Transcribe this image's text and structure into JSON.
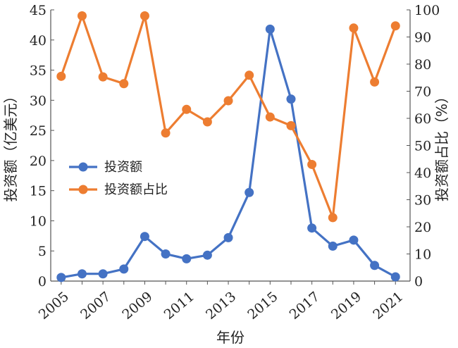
{
  "chart_data": {
    "type": "line",
    "x": [
      2005,
      2006,
      2007,
      2008,
      2009,
      2010,
      2011,
      2012,
      2013,
      2014,
      2015,
      2016,
      2017,
      2018,
      2019,
      2020,
      2021
    ],
    "x_ticks": [
      "2005",
      "2007",
      "2009",
      "2011",
      "2013",
      "2015",
      "2017",
      "2019",
      "2021"
    ],
    "xlabel": "年份",
    "ylabel_left": "投资额（亿美元）",
    "ylabel_right": "投资额占比（%）",
    "ylim_left": [
      0,
      45
    ],
    "ylim_right": [
      0,
      100
    ],
    "left_ticks": [
      "0",
      "5",
      "10",
      "15",
      "20",
      "25",
      "30",
      "35",
      "40",
      "45"
    ],
    "right_ticks": [
      "0",
      "10",
      "20",
      "30",
      "40",
      "50",
      "60",
      "70",
      "80",
      "90",
      "100"
    ],
    "grid": false,
    "legend_position": "center-left",
    "series": [
      {
        "name": "投资额",
        "axis": "left",
        "color": "#4472C4",
        "values": [
          0.6,
          1.2,
          1.2,
          2.0,
          7.4,
          4.5,
          3.7,
          4.3,
          7.2,
          14.7,
          41.8,
          30.2,
          8.8,
          5.8,
          6.8,
          2.6,
          0.7
        ]
      },
      {
        "name": "投资额占比",
        "axis": "right",
        "color": "#ED7D31",
        "values": [
          75.5,
          97.8,
          75.3,
          72.8,
          97.8,
          54.6,
          63.3,
          58.7,
          66.5,
          75.9,
          60.5,
          57.3,
          43.0,
          23.4,
          93.3,
          73.4,
          94.1
        ]
      }
    ]
  }
}
